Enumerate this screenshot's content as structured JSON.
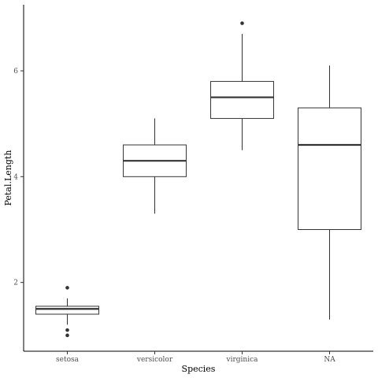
{
  "chart_data": {
    "type": "boxplot",
    "xlabel": "Species",
    "ylabel": "Petal.Length",
    "categories": [
      "setosa",
      "versicolor",
      "virginica",
      "NA"
    ],
    "y_ticks": [
      2,
      4,
      6
    ],
    "ylim": [
      0.7,
      7.25
    ],
    "grid": false,
    "boxes": [
      {
        "category": "setosa",
        "whisker_low": 1.2,
        "q1": 1.4,
        "median": 1.5,
        "q3": 1.55,
        "whisker_high": 1.7,
        "outliers": [
          1.0,
          1.1,
          1.9
        ]
      },
      {
        "category": "versicolor",
        "whisker_low": 3.3,
        "q1": 4.0,
        "median": 4.3,
        "q3": 4.6,
        "whisker_high": 5.1,
        "outliers": []
      },
      {
        "category": "virginica",
        "whisker_low": 4.5,
        "q1": 5.1,
        "median": 5.5,
        "q3": 5.8,
        "whisker_high": 6.7,
        "outliers": [
          6.9
        ]
      },
      {
        "category": "NA",
        "whisker_low": 1.3,
        "q1": 3.0,
        "median": 4.6,
        "q3": 5.3,
        "whisker_high": 6.1,
        "outliers": []
      }
    ]
  }
}
